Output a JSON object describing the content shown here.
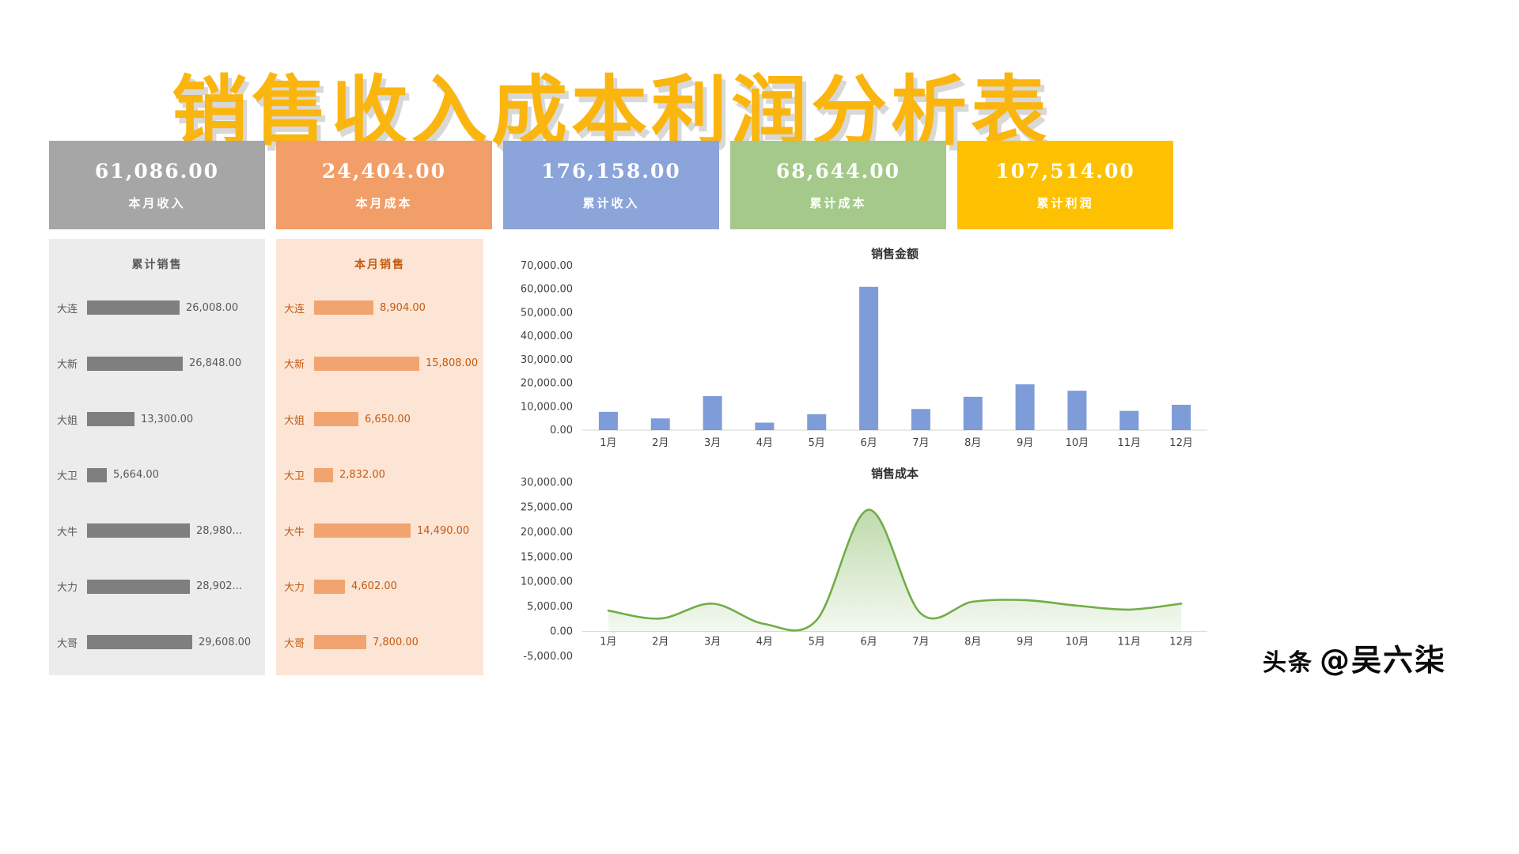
{
  "title": "销售收入成本利润分析表",
  "kpi_cards": [
    {
      "id": "monthly-revenue",
      "value": "61,086.00",
      "label": "本月收入",
      "color": "#a6a6a6"
    },
    {
      "id": "monthly-cost",
      "value": "24,404.00",
      "label": "本月成本",
      "color": "#f19e68"
    },
    {
      "id": "cumulative-revenue",
      "value": "176,158.00",
      "label": "累计收入",
      "color": "#8ba4d9"
    },
    {
      "id": "cumulative-cost",
      "value": "68,644.00",
      "label": "累计成本",
      "color": "#a4c98a"
    },
    {
      "id": "cumulative-profit",
      "value": "107,514.00",
      "label": "累计利润",
      "color": "#fdc101"
    }
  ],
  "chart_data": [
    {
      "type": "bar",
      "orientation": "horizontal",
      "title": "累计销售",
      "categories": [
        "大连",
        "大新",
        "大姐",
        "大卫",
        "大牛",
        "大力",
        "大哥"
      ],
      "values": [
        26008,
        26848,
        13300,
        5664,
        28980,
        28902,
        29608
      ],
      "value_labels": [
        "26,008.00",
        "26,848.00",
        "13,300.00",
        "5,664.00",
        "28,980...",
        "28,902...",
        "29,608.00"
      ],
      "xlim": [
        0,
        30000
      ],
      "bar_color": "#7f7f7f",
      "text_color": "#595959",
      "panel_bg": "#ececec",
      "grid": false,
      "legend": "none"
    },
    {
      "type": "bar",
      "orientation": "horizontal",
      "title": "本月销售",
      "categories": [
        "大连",
        "大新",
        "大姐",
        "大卫",
        "大牛",
        "大力",
        "大哥"
      ],
      "values": [
        8904,
        15808,
        6650,
        2832,
        14490,
        4602,
        7800
      ],
      "value_labels": [
        "8,904.00",
        "15,808.00",
        "6,650.00",
        "2,832.00",
        "14,490.00",
        "4,602.00",
        "7,800.00"
      ],
      "xlim": [
        0,
        16000
      ],
      "bar_color": "#f2a470",
      "text_color": "#c55a11",
      "panel_bg": "#fce5d5",
      "grid": false,
      "legend": "none"
    },
    {
      "type": "bar",
      "orientation": "vertical",
      "title": "销售金额",
      "categories": [
        "1月",
        "2月",
        "3月",
        "4月",
        "5月",
        "6月",
        "7月",
        "8月",
        "9月",
        "10月",
        "11月",
        "12月"
      ],
      "values": [
        7800,
        5000,
        14500,
        3200,
        6800,
        61000,
        9000,
        14200,
        19500,
        16800,
        8200,
        10800
      ],
      "ylim": [
        0,
        70000
      ],
      "ytick_step": 10000,
      "ytick_labels": [
        "0.00",
        "10,000.00",
        "20,000.00",
        "30,000.00",
        "40,000.00",
        "50,000.00",
        "60,000.00",
        "70,000.00"
      ],
      "bar_color": "#7e9cd8",
      "grid": false,
      "legend": "none"
    },
    {
      "type": "area",
      "line_style": "smooth",
      "title": "销售成本",
      "categories": [
        "1月",
        "2月",
        "3月",
        "4月",
        "5月",
        "6月",
        "7月",
        "8月",
        "9月",
        "10月",
        "11月",
        "12月"
      ],
      "values": [
        4200,
        2600,
        5600,
        1500,
        2300,
        24500,
        3600,
        6000,
        6300,
        5200,
        4400,
        5600
      ],
      "ylim": [
        -5000,
        30000
      ],
      "ytick_step": 5000,
      "ytick_labels": [
        "-5,000.00",
        "0.00",
        "5,000.00",
        "10,000.00",
        "15,000.00",
        "20,000.00",
        "25,000.00",
        "30,000.00"
      ],
      "line_color": "#70ad47",
      "fill_color": "#70ad47",
      "grid": false,
      "legend": "none"
    }
  ],
  "watermark": {
    "brand": "头条",
    "handle": "@吴六柒"
  }
}
